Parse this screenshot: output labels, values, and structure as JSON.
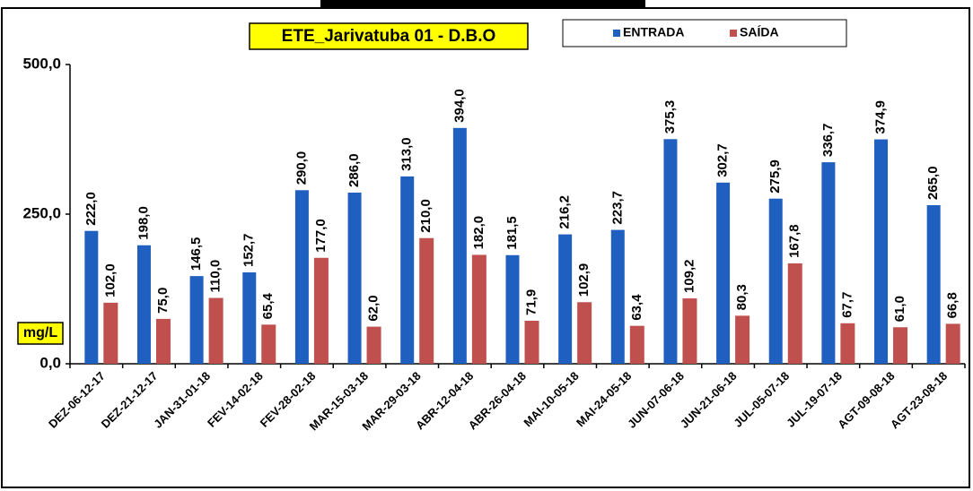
{
  "chart_data": {
    "type": "bar",
    "title": "ETE_Jarivatuba 01 - D.B.O",
    "y_label": "mg/L",
    "categories": [
      "DEZ-06-12-17",
      "DEZ-21-12-17",
      "JAN-31-01-18",
      "FEV-14-02-18",
      "FEV-28-02-18",
      "MAR-15-03-18",
      "MAR-29-03-18",
      "ABR-12-04-18",
      "ABR-26-04-18",
      "MAI-10-05-18",
      "MAI-24-05-18",
      "JUN-07-06-18",
      "JUN-21-06-18",
      "JUL-05-07-18",
      "JUL-19-07-18",
      "AGT-09-08-18",
      "AGT-23-08-18"
    ],
    "series": [
      {
        "name": "ENTRADA",
        "color": "#1f5fc0",
        "values": [
          222.0,
          198.0,
          146.5,
          152.7,
          290.0,
          286.0,
          313.0,
          394.0,
          181.5,
          216.2,
          223.7,
          375.3,
          302.7,
          275.9,
          336.7,
          374.9,
          265.0
        ],
        "value_labels": [
          "222,0",
          "198,0",
          "146,5",
          "152,7",
          "290,0",
          "286,0",
          "313,0",
          "394,0",
          "181,5",
          "216,2",
          "223,7",
          "375,3",
          "302,7",
          "275,9",
          "336,7",
          "374,9",
          "265,0"
        ]
      },
      {
        "name": "SAÍDA",
        "color": "#c0504d",
        "values": [
          102.0,
          75.0,
          110.0,
          65.4,
          177.0,
          62.0,
          210.0,
          182.0,
          71.9,
          102.9,
          63.4,
          109.2,
          80.3,
          167.8,
          67.7,
          61.0,
          66.8
        ],
        "value_labels": [
          "102,0",
          "75,0",
          "110,0",
          "65,4",
          "177,0",
          "62,0",
          "210,0",
          "182,0",
          "71,9",
          "102,9",
          "63,4",
          "109,2",
          "80,3",
          "167,8",
          "67,7",
          "61,0",
          "66,8"
        ]
      }
    ],
    "ylim": [
      0,
      500
    ],
    "yticks": [
      {
        "value": 0,
        "label": "0,0"
      },
      {
        "value": 250,
        "label": "250,0"
      },
      {
        "value": 500,
        "label": "500,0"
      }
    ],
    "grid": false,
    "legend": "top"
  }
}
